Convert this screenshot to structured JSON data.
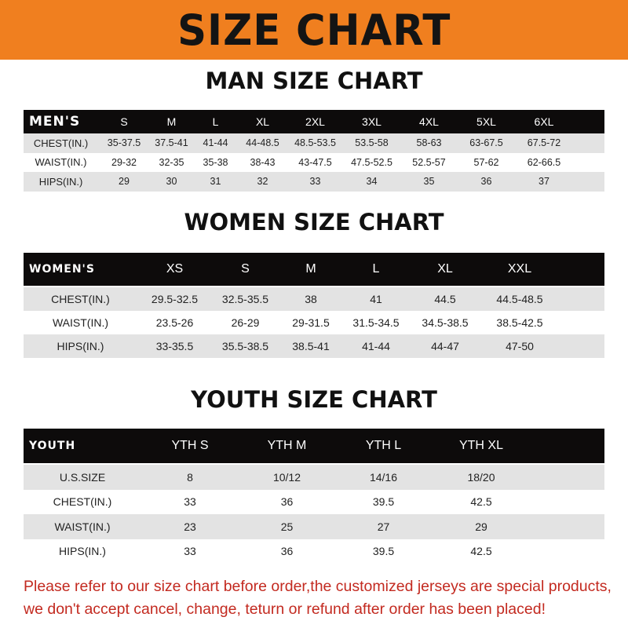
{
  "banner": {
    "title": "SIZE CHART",
    "color": "#f07f1f"
  },
  "men": {
    "heading": "MAN SIZE CHART",
    "header": [
      "MEN'S",
      "S",
      "M",
      "L",
      "XL",
      "2XL",
      "3XL",
      "4XL",
      "5XL",
      "6XL"
    ],
    "rows": [
      [
        "CHEST(IN.)",
        "35-37.5",
        "37.5-41",
        "41-44",
        "44-48.5",
        "48.5-53.5",
        "53.5-58",
        "58-63",
        "63-67.5",
        "67.5-72"
      ],
      [
        "WAIST(IN.)",
        "29-32",
        "32-35",
        "35-38",
        "38-43",
        "43-47.5",
        "47.5-52.5",
        "52.5-57",
        "57-62",
        "62-66.5"
      ],
      [
        "HIPS(IN.)",
        "29",
        "30",
        "31",
        "32",
        "33",
        "34",
        "35",
        "36",
        "37"
      ]
    ]
  },
  "women": {
    "heading": "WOMEN SIZE CHART",
    "header": [
      "WOMEN'S",
      "XS",
      "S",
      "M",
      "L",
      "XL",
      "XXL"
    ],
    "rows": [
      [
        "CHEST(IN.)",
        "29.5-32.5",
        "32.5-35.5",
        "38",
        "41",
        "44.5",
        "44.5-48.5"
      ],
      [
        "WAIST(IN.)",
        "23.5-26",
        "26-29",
        "29-31.5",
        "31.5-34.5",
        "34.5-38.5",
        "38.5-42.5"
      ],
      [
        "HIPS(IN.)",
        "33-35.5",
        "35.5-38.5",
        "38.5-41",
        "41-44",
        "44-47",
        "47-50"
      ]
    ]
  },
  "youth": {
    "heading": "YOUTH SIZE CHART",
    "header": [
      "YOUTH",
      "YTH S",
      "YTH M",
      "YTH L",
      "YTH XL"
    ],
    "rows": [
      [
        "U.S.SIZE",
        "8",
        "10/12",
        "14/16",
        "18/20"
      ],
      [
        "CHEST(IN.)",
        "33",
        "36",
        "39.5",
        "42.5"
      ],
      [
        "WAIST(IN.)",
        "23",
        "25",
        "27",
        "29"
      ],
      [
        "HIPS(IN.)",
        "33",
        "36",
        "39.5",
        "42.5"
      ]
    ]
  },
  "note": {
    "line1": "Please refer to our size chart before order,the customized jerseys are special products,",
    "line2": "we don't accept cancel, change, teturn or refund after order has been placed!",
    "color": "#c32a20"
  }
}
